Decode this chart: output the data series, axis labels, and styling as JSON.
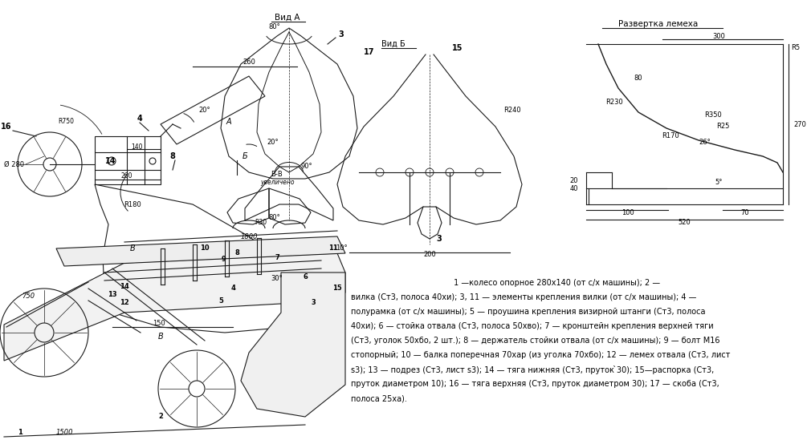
{
  "fig_width": 10.1,
  "fig_height": 5.49,
  "dpi": 100,
  "lc": "#1a1a1a",
  "lw": 0.8,
  "parts_line1": "                                         1 —колесо опорное 280х140 (от с/х машины); 2 —",
  "parts_line2": "вилка (Ст3, полоса 40хи); 3, 11 — элементы крепления вилки (от с/х машины); 4 —",
  "parts_line3": "полурамка (от с/х машины); 5 — проушина крепления визирной штанги (Ст3, полоса",
  "parts_line4": "40хи); 6 — стойка отвала (Ст3, полоса 50хво); 7 — кронштейн крепления верхней тяги",
  "parts_line5": "(Ст3, уголок 50хбо, 2 шт.); 8 — держатель стойки отвала (от с/х машины); 9 — болт М16",
  "parts_line6": "стопорный; 10 — балка поперечная 70хар (из уголка 70хбо); 12 — лемех отвала (Ст3, лист",
  "parts_line7": "s3); 13 — подрез (Ст3, лист s3); 14 — тяга нижняя (Ст3, пруток ̀30); 15—распорка (Ст3,",
  "parts_line8": "пруток диаметром 10); 16 — тяга верхняя (Ст3, пруток диаметром 30); 17 — скоба (Ст3,",
  "parts_line9": "полоса 25ха)."
}
